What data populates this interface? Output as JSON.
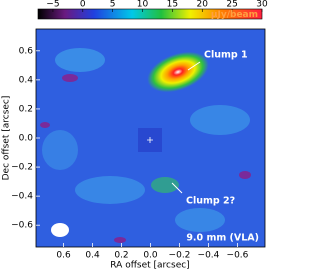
{
  "chart_data": {
    "type": "image",
    "xlabel": "RA offset [arcsec]",
    "ylabel": "Dec offset [arcsec]",
    "xlim": [
      0.79,
      -0.79
    ],
    "ylim": [
      -0.75,
      0.75
    ],
    "xticks": [
      0.6,
      0.4,
      0.2,
      {
        "value": 0,
        "label": "0.0"
      },
      {
        "value": -0.2,
        "label": "−0.2"
      },
      {
        "value": -0.4,
        "label": "−0.4"
      },
      {
        "value": -0.6,
        "label": "−0.6"
      }
    ],
    "yticks": [
      {
        "value": -0.6,
        "label": "−0.6"
      },
      {
        "value": -0.4,
        "label": "−0.4"
      },
      {
        "value": -0.2,
        "label": "−0.2"
      },
      {
        "value": 0,
        "label": "0.0"
      },
      0.2,
      0.4,
      0.6
    ],
    "colorbar": {
      "label": "μJy/beam",
      "clim": [
        -7.5,
        30
      ],
      "ticks": [
        {
          "value": -5,
          "label": "−5"
        },
        0,
        5,
        10,
        15,
        20,
        25,
        30
      ]
    },
    "annotations": [
      {
        "text": "Clump 1"
      },
      {
        "text": "Clump 2?"
      },
      {
        "text": "9.0 mm (VLA)"
      }
    ]
  }
}
